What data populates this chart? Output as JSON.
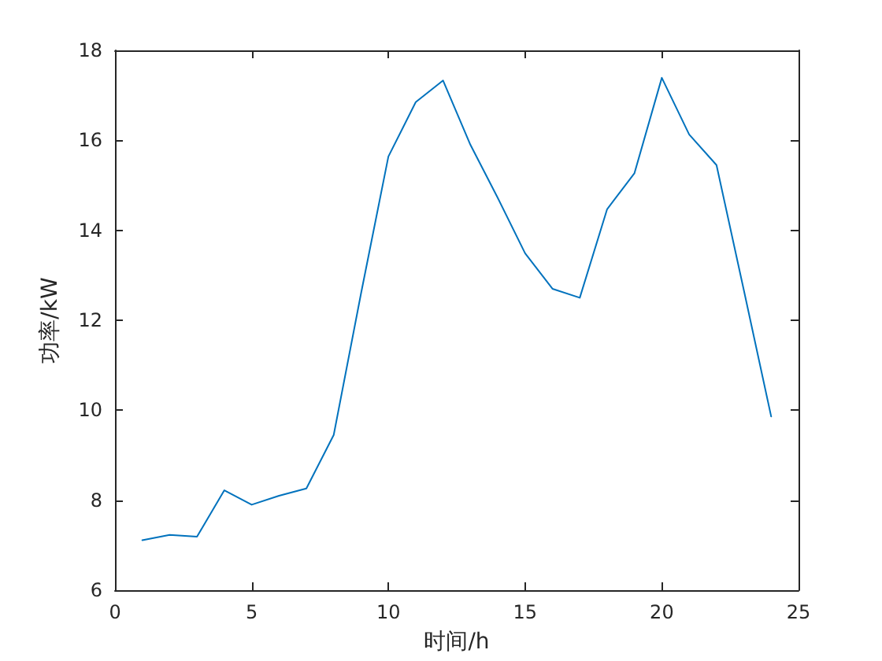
{
  "chart_data": {
    "type": "line",
    "xlabel": "时间/h",
    "ylabel": "功率/kW",
    "x": [
      1,
      2,
      3,
      4,
      5,
      6,
      7,
      8,
      9,
      10,
      11,
      12,
      13,
      14,
      15,
      16,
      17,
      18,
      19,
      20,
      21,
      22,
      23,
      24
    ],
    "series": [
      {
        "color": "#0072bd",
        "values": [
          7.11,
          7.23,
          7.19,
          8.22,
          7.9,
          8.1,
          8.26,
          9.45,
          12.6,
          15.64,
          16.85,
          17.33,
          15.9,
          14.72,
          13.49,
          12.7,
          12.5,
          14.47,
          15.27,
          17.39,
          16.13,
          15.45,
          12.67,
          9.86
        ]
      }
    ],
    "xlim": [
      0,
      25
    ],
    "xticks": [
      0,
      5,
      10,
      15,
      20,
      25
    ],
    "ylim": [
      6,
      18
    ],
    "yticks": [
      6,
      8,
      10,
      12,
      14,
      16,
      18
    ],
    "grid": false,
    "marker": "none",
    "line_style": "solid"
  }
}
